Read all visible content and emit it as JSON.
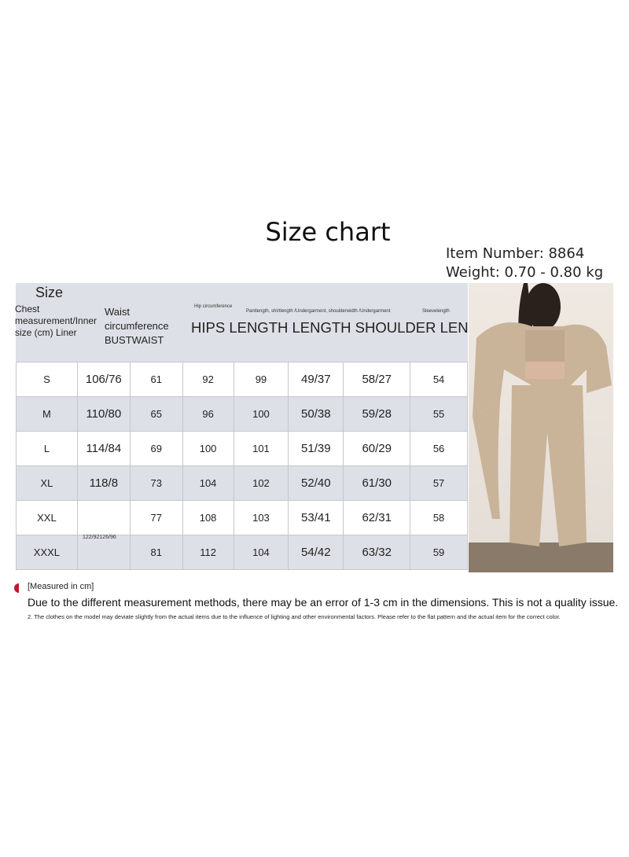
{
  "title": "Size chart",
  "item_number": "Item Number: 8864",
  "weight": "Weight: 0.70 - 0.80 kg",
  "header": {
    "size": "Size",
    "chest": "Chest measurement/Inner size (cm) Liner",
    "waist": "Waist circumference BUSTWAIST",
    "hip_small": "Hip circumference",
    "lengths_small": "Pantlength, shirtlength /Undergarment, shoulderwidth /Undergarment",
    "sleeve_small": "Sleevelength",
    "big": "HIPS LENGTH LENGTH SHOULDER LENGTH"
  },
  "rows": [
    [
      "S",
      "106/76",
      "61",
      "92",
      "99",
      "49/37",
      "58/27",
      "54"
    ],
    [
      "M",
      "110/80",
      "65",
      "96",
      "100",
      "50/38",
      "59/28",
      "55"
    ],
    [
      "L",
      "114/84",
      "69",
      "100",
      "101",
      "51/39",
      "60/29",
      "56"
    ],
    [
      "XL",
      "118/8",
      "73",
      "104",
      "102",
      "52/40",
      "61/30",
      "57"
    ],
    [
      "XXL",
      "",
      "77",
      "108",
      "103",
      "53/41",
      "62/31",
      "58"
    ],
    [
      "XXXL",
      "",
      "81",
      "112",
      "104",
      "54/42",
      "63/32",
      "59"
    ]
  ],
  "merged_note": "122/92126/96",
  "notes": {
    "measured": "[Measured in cm]",
    "error": "Due to the different measurement methods, there may be an error of 1-3 cm in the dimensions. This is not a quality issue.",
    "color": "2. The clothes on the model may deviate slightly from the actual items due to the influence of lighting and other environmental factors. Please refer to the flat pattern and the actual item for the correct color."
  },
  "colors": {
    "header_bg": "#dde0e6",
    "accent": "#c0182e",
    "garment": "#c9b399"
  }
}
